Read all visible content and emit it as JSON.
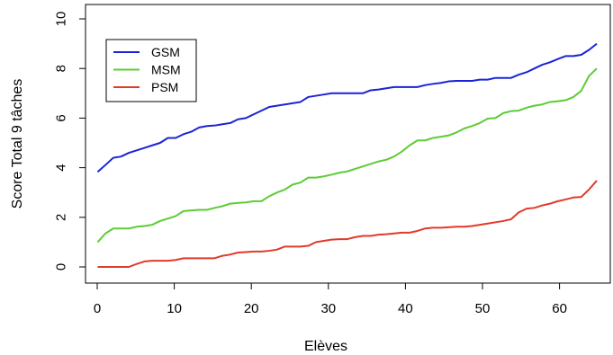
{
  "chart_data": {
    "type": "line",
    "xlabel": "Elèves",
    "ylabel": "Score Total 9 tâches",
    "xlim": [
      1,
      65
    ],
    "ylim": [
      0,
      10
    ],
    "x_ticks": [
      0,
      10,
      20,
      30,
      40,
      50,
      60
    ],
    "y_ticks": [
      0,
      2,
      4,
      6,
      8,
      10
    ],
    "legend_position": "top-left",
    "x": [
      1,
      2,
      3,
      4,
      5,
      6,
      7,
      8,
      9,
      10,
      11,
      12,
      13,
      14,
      15,
      16,
      17,
      18,
      19,
      20,
      21,
      22,
      23,
      24,
      25,
      26,
      27,
      28,
      29,
      30,
      31,
      32,
      33,
      34,
      35,
      36,
      37,
      38,
      39,
      40,
      41,
      42,
      43,
      44,
      45,
      46,
      47,
      48,
      49,
      50,
      51,
      52,
      53,
      54,
      55,
      56,
      57,
      58,
      59,
      60,
      61,
      62,
      63,
      64,
      65
    ],
    "series": [
      {
        "name": "GSM",
        "color": "#1a24d6",
        "values": [
          3.83,
          4.11,
          4.4,
          4.45,
          4.6,
          4.7,
          4.8,
          4.9,
          5.0,
          5.2,
          5.2,
          5.35,
          5.45,
          5.62,
          5.68,
          5.7,
          5.75,
          5.8,
          5.95,
          6.0,
          6.15,
          6.3,
          6.45,
          6.5,
          6.55,
          6.6,
          6.65,
          6.85,
          6.9,
          6.95,
          7.0,
          7.0,
          7.0,
          7.0,
          7.0,
          7.12,
          7.15,
          7.2,
          7.25,
          7.25,
          7.25,
          7.25,
          7.33,
          7.38,
          7.42,
          7.48,
          7.5,
          7.5,
          7.5,
          7.55,
          7.55,
          7.62,
          7.62,
          7.62,
          7.75,
          7.85,
          8.0,
          8.15,
          8.25,
          8.38,
          8.5,
          8.5,
          8.55,
          8.75,
          9.0
        ]
      },
      {
        "name": "MSM",
        "color": "#5ccc36",
        "values": [
          1.0,
          1.35,
          1.55,
          1.55,
          1.55,
          1.62,
          1.65,
          1.7,
          1.85,
          1.95,
          2.05,
          2.25,
          2.28,
          2.3,
          2.3,
          2.38,
          2.45,
          2.55,
          2.58,
          2.6,
          2.65,
          2.65,
          2.85,
          3.0,
          3.12,
          3.32,
          3.4,
          3.6,
          3.6,
          3.65,
          3.72,
          3.8,
          3.85,
          3.95,
          4.05,
          4.15,
          4.25,
          4.32,
          4.45,
          4.65,
          4.9,
          5.1,
          5.1,
          5.2,
          5.25,
          5.3,
          5.42,
          5.58,
          5.68,
          5.8,
          5.98,
          6.0,
          6.2,
          6.28,
          6.3,
          6.42,
          6.5,
          6.55,
          6.65,
          6.68,
          6.72,
          6.85,
          7.1,
          7.7,
          8.0
        ]
      },
      {
        "name": "PSM",
        "color": "#e03a2a",
        "values": [
          0.0,
          0.0,
          0.0,
          0.0,
          0.0,
          0.12,
          0.22,
          0.25,
          0.25,
          0.25,
          0.28,
          0.35,
          0.35,
          0.35,
          0.35,
          0.35,
          0.45,
          0.5,
          0.58,
          0.6,
          0.62,
          0.62,
          0.65,
          0.7,
          0.82,
          0.82,
          0.82,
          0.85,
          1.0,
          1.05,
          1.1,
          1.12,
          1.12,
          1.2,
          1.25,
          1.25,
          1.3,
          1.32,
          1.35,
          1.38,
          1.38,
          1.45,
          1.55,
          1.58,
          1.58,
          1.6,
          1.62,
          1.62,
          1.65,
          1.7,
          1.75,
          1.8,
          1.85,
          1.92,
          2.2,
          2.35,
          2.38,
          2.48,
          2.55,
          2.65,
          2.72,
          2.8,
          2.82,
          3.12,
          3.48
        ]
      }
    ]
  }
}
